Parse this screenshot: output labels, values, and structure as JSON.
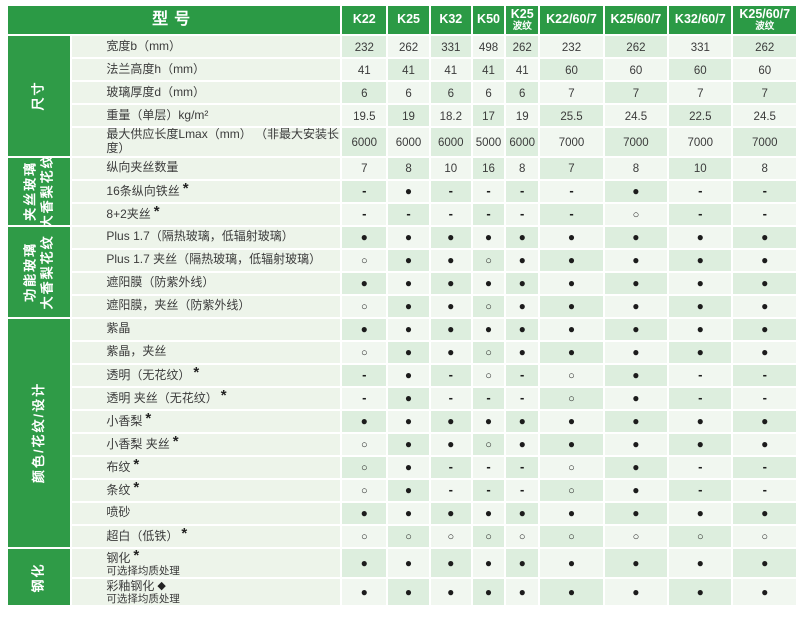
{
  "header": {
    "title": "型号",
    "columns": [
      {
        "line1": "K22",
        "line2": ""
      },
      {
        "line1": "K25",
        "line2": ""
      },
      {
        "line1": "K32",
        "line2": ""
      },
      {
        "line1": "K50",
        "line2": ""
      },
      {
        "line1": "K25",
        "line2": "波纹"
      },
      {
        "line1": "K22/60/7",
        "line2": ""
      },
      {
        "line1": "K25/60/7",
        "line2": ""
      },
      {
        "line1": "K32/60/7",
        "line2": ""
      },
      {
        "line1": "K25/60/7",
        "line2": "波纹"
      }
    ]
  },
  "colors": {
    "header_green": "#2b9a45",
    "band_green": "#2f9b47",
    "cell_dark": "#ddeede",
    "cell_light": "#f1f7f0",
    "label_bg": "#edf4ea",
    "symbol_color": "#1c1c1c"
  },
  "groups": [
    {
      "id": "size",
      "label_lines": [
        "尺寸"
      ],
      "rows": [
        {
          "label": "宽度b（mm）",
          "suffix": "",
          "note": "",
          "values": [
            "232",
            "262",
            "331",
            "498",
            "262",
            "232",
            "262",
            "331",
            "262"
          ]
        },
        {
          "label": "法兰高度h（mm）",
          "suffix": "",
          "note": "",
          "values": [
            "41",
            "41",
            "41",
            "41",
            "41",
            "60",
            "60",
            "60",
            "60"
          ]
        },
        {
          "label": "玻璃厚度d（mm）",
          "suffix": "",
          "note": "",
          "values": [
            "6",
            "6",
            "6",
            "6",
            "6",
            "7",
            "7",
            "7",
            "7"
          ]
        },
        {
          "label": "重量（单层）kg/m²",
          "suffix": "",
          "note": "",
          "values": [
            "19.5",
            "19",
            "18.2",
            "17",
            "19",
            "25.5",
            "24.5",
            "22.5",
            "24.5"
          ]
        },
        {
          "label": "最大供应长度Lmax（mm） （非最大安装长度）",
          "suffix": "",
          "note": "",
          "values": [
            "6000",
            "6000",
            "6000",
            "5000",
            "6000",
            "7000",
            "7000",
            "7000",
            "7000"
          ]
        }
      ]
    },
    {
      "id": "wired-glass",
      "label_lines": [
        "夹丝玻璃",
        "大香梨花纹"
      ],
      "rows": [
        {
          "label": "纵向夹丝数量",
          "suffix": "",
          "note": "",
          "values": [
            "7",
            "8",
            "10",
            "16",
            "8",
            "7",
            "8",
            "10",
            "8"
          ]
        },
        {
          "label": "16条纵向铁丝",
          "suffix": "*",
          "note": "",
          "values": [
            "-",
            "●",
            "-",
            "-",
            "-",
            "-",
            "●",
            "-",
            "-"
          ]
        },
        {
          "label": "8+2夹丝",
          "suffix": "*",
          "note": "",
          "values": [
            "-",
            "-",
            "-",
            "-",
            "-",
            "-",
            "○",
            "-",
            "-"
          ]
        }
      ]
    },
    {
      "id": "functional-glass",
      "label_lines": [
        "功能玻璃",
        "大香梨花纹"
      ],
      "rows": [
        {
          "label": "Plus 1.7（隔热玻璃，低辐射玻璃）",
          "suffix": "",
          "note": "",
          "values": [
            "●",
            "●",
            "●",
            "●",
            "●",
            "●",
            "●",
            "●",
            "●"
          ]
        },
        {
          "label": "Plus 1.7 夹丝（隔热玻璃，低辐射玻璃）",
          "suffix": "",
          "note": "",
          "values": [
            "○",
            "●",
            "●",
            "○",
            "●",
            "●",
            "●",
            "●",
            "●"
          ]
        },
        {
          "label": "遮阳膜（防紫外线）",
          "suffix": "",
          "note": "",
          "values": [
            "●",
            "●",
            "●",
            "●",
            "●",
            "●",
            "●",
            "●",
            "●"
          ]
        },
        {
          "label": "遮阳膜，夹丝（防紫外线）",
          "suffix": "",
          "note": "",
          "values": [
            "○",
            "●",
            "●",
            "○",
            "●",
            "●",
            "●",
            "●",
            "●"
          ]
        }
      ]
    },
    {
      "id": "color-pattern-design",
      "label_lines": [
        "颜色/花纹/设计"
      ],
      "rows": [
        {
          "label": "紫晶",
          "suffix": "",
          "note": "",
          "values": [
            "●",
            "●",
            "●",
            "●",
            "●",
            "●",
            "●",
            "●",
            "●"
          ]
        },
        {
          "label": "紫晶，夹丝",
          "suffix": "",
          "note": "",
          "values": [
            "○",
            "●",
            "●",
            "○",
            "●",
            "●",
            "●",
            "●",
            "●"
          ]
        },
        {
          "label": "透明（无花纹）",
          "suffix": "*",
          "note": "",
          "values": [
            "-",
            "●",
            "-",
            "○",
            "-",
            "○",
            "●",
            "-",
            "-"
          ]
        },
        {
          "label": "透明 夹丝（无花纹）",
          "suffix": "*",
          "note": "",
          "values": [
            "-",
            "●",
            "-",
            "-",
            "-",
            "○",
            "●",
            "-",
            "-"
          ]
        },
        {
          "label": "小香梨",
          "suffix": "*",
          "note": "",
          "values": [
            "●",
            "●",
            "●",
            "●",
            "●",
            "●",
            "●",
            "●",
            "●"
          ]
        },
        {
          "label": "小香梨 夹丝",
          "suffix": "*",
          "note": "",
          "values": [
            "○",
            "●",
            "●",
            "○",
            "●",
            "●",
            "●",
            "●",
            "●"
          ]
        },
        {
          "label": "布纹",
          "suffix": "*",
          "note": "",
          "values": [
            "○",
            "●",
            "-",
            "-",
            "-",
            "○",
            "●",
            "-",
            "-"
          ]
        },
        {
          "label": "条纹",
          "suffix": "*",
          "note": "",
          "values": [
            "○",
            "●",
            "-",
            "-",
            "-",
            "○",
            "●",
            "-",
            "-"
          ]
        },
        {
          "label": "喷砂",
          "suffix": "",
          "note": "",
          "values": [
            "●",
            "●",
            "●",
            "●",
            "●",
            "●",
            "●",
            "●",
            "●"
          ]
        },
        {
          "label": "超白（低铁）",
          "suffix": "*",
          "note": "",
          "values": [
            "○",
            "○",
            "○",
            "○",
            "○",
            "○",
            "○",
            "○",
            "○"
          ]
        }
      ]
    },
    {
      "id": "tempered",
      "label_lines": [
        "钢化"
      ],
      "tall": true,
      "rows": [
        {
          "label": "钢化",
          "suffix": "*",
          "note": "可选择均质处理",
          "values": [
            "●",
            "●",
            "●",
            "●",
            "●",
            "●",
            "●",
            "●",
            "●"
          ]
        },
        {
          "label": "彩釉钢化",
          "suffix": "◆",
          "note": "可选择均质处理",
          "values": [
            "●",
            "●",
            "●",
            "●",
            "●",
            "●",
            "●",
            "●",
            "●"
          ]
        }
      ]
    }
  ]
}
